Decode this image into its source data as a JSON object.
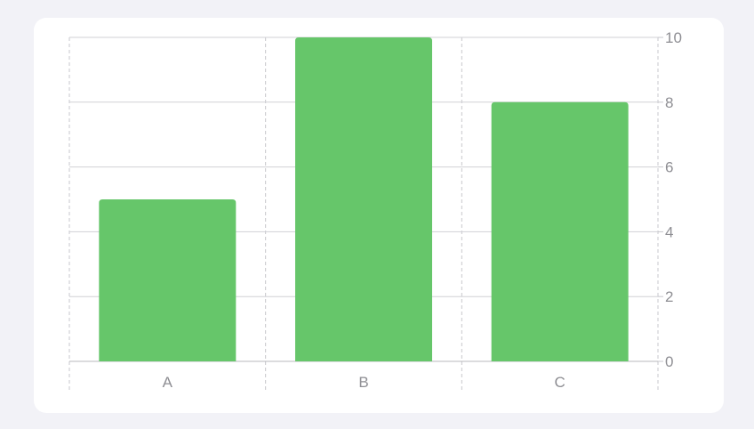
{
  "chart_data": {
    "type": "bar",
    "categories": [
      "A",
      "B",
      "C"
    ],
    "values": [
      5,
      10,
      8
    ],
    "ylim": [
      0,
      10
    ],
    "yticks": [
      0,
      2,
      4,
      6,
      8,
      10
    ],
    "y_axis_position": "right",
    "grid": true,
    "bar_color": "#66c66a"
  }
}
